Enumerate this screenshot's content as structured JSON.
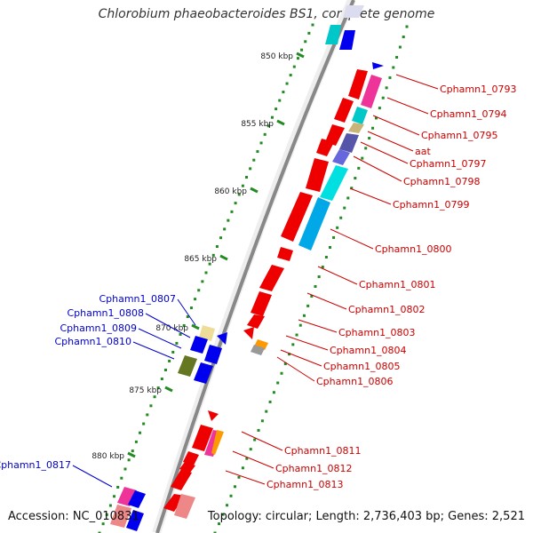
{
  "title": "Chlorobium phaeobacteroides BS1, complete genome",
  "footer": {
    "accession": "Accession: NC_010831",
    "summary": "Topology: circular; Length: 2,736,403 bp; Genes: 2,521"
  },
  "colors": {
    "forward_label": "#cc0000",
    "reverse_label": "#0000cc",
    "backbone": "#888888",
    "tick": "#228b22"
  },
  "scale_labels": [
    "850 kbp",
    "855 kbp",
    "860 kbp",
    "865 kbp",
    "870 kbp",
    "875 kbp",
    "880 kbp"
  ],
  "forward_labels": [
    "Cphamn1_0793",
    "Cphamn1_0794",
    "Cphamn1_0795",
    "aat",
    "Cphamn1_0797",
    "Cphamn1_0798",
    "Cphamn1_0799",
    "Cphamn1_0800",
    "Cphamn1_0801",
    "Cphamn1_0802",
    "Cphamn1_0803",
    "Cphamn1_0804",
    "Cphamn1_0805",
    "Cphamn1_0806",
    "Cphamn1_0811",
    "Cphamn1_0812",
    "Cphamn1_0813"
  ],
  "reverse_labels": [
    "Cphamn1_0807",
    "Cphamn1_0808",
    "Cphamn1_0809",
    "Cphamn1_0810",
    "Cphamn1_0817"
  ]
}
